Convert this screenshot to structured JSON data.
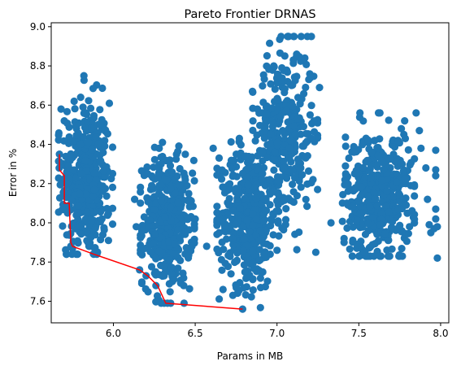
{
  "chart_data": {
    "type": "scatter",
    "title": "Pareto Frontier DRNAS",
    "xlabel": "Params in MB",
    "ylabel": "Error in %",
    "xlim": [
      5.62,
      8.05
    ],
    "ylim": [
      7.49,
      9.02
    ],
    "x_ticks": [
      6.0,
      6.5,
      7.0,
      7.5,
      8.0
    ],
    "x_tick_labels": [
      "6.0",
      "6.5",
      "7.0",
      "7.5",
      "8.0"
    ],
    "y_ticks": [
      7.6,
      7.8,
      8.0,
      8.2,
      8.4,
      8.6,
      8.8,
      9.0
    ],
    "y_tick_labels": [
      "7.6",
      "7.8",
      "8.0",
      "8.2",
      "8.4",
      "8.6",
      "8.8",
      "9.0"
    ],
    "grid": false,
    "legend": "none",
    "colors": {
      "points": "#1f77b4",
      "frontier": "#ff0000"
    },
    "series": [
      {
        "kind": "scatter",
        "color": "#1f77b4",
        "clusters": [
          {
            "x_center": 5.83,
            "x_spread": 0.075,
            "y_center": 8.22,
            "y_spread": 0.2,
            "y_min": 7.84,
            "y_max": 8.75,
            "count": 420
          },
          {
            "x_center": 6.33,
            "x_spread": 0.075,
            "y_center": 8.0,
            "y_spread": 0.16,
            "y_min": 7.59,
            "y_max": 8.41,
            "count": 420
          },
          {
            "x_center": 6.82,
            "x_spread": 0.085,
            "y_center": 8.04,
            "y_spread": 0.18,
            "y_min": 7.56,
            "y_max": 8.55,
            "count": 420
          },
          {
            "x_center": 7.05,
            "x_spread": 0.09,
            "y_center": 8.45,
            "y_spread": 0.22,
            "y_min": 7.85,
            "y_max": 8.95,
            "count": 330
          },
          {
            "x_center": 7.62,
            "x_spread": 0.1,
            "y_center": 8.14,
            "y_spread": 0.16,
            "y_min": 7.83,
            "y_max": 8.56,
            "count": 420
          }
        ],
        "points": [
          {
            "x": 5.67,
            "y": 8.35
          },
          {
            "x": 5.68,
            "y": 8.58
          },
          {
            "x": 5.7,
            "y": 8.52
          },
          {
            "x": 5.72,
            "y": 8.05
          },
          {
            "x": 5.74,
            "y": 7.88
          },
          {
            "x": 5.76,
            "y": 8.62
          },
          {
            "x": 5.8,
            "y": 8.64
          },
          {
            "x": 5.82,
            "y": 8.75
          },
          {
            "x": 5.88,
            "y": 7.84
          },
          {
            "x": 5.97,
            "y": 7.91
          },
          {
            "x": 6.13,
            "y": 8.12
          },
          {
            "x": 6.14,
            "y": 7.98
          },
          {
            "x": 6.16,
            "y": 7.76
          },
          {
            "x": 6.2,
            "y": 7.73
          },
          {
            "x": 6.21,
            "y": 8.25
          },
          {
            "x": 6.26,
            "y": 7.68
          },
          {
            "x": 6.28,
            "y": 8.38
          },
          {
            "x": 6.3,
            "y": 8.41
          },
          {
            "x": 6.31,
            "y": 7.59
          },
          {
            "x": 6.35,
            "y": 7.59
          },
          {
            "x": 6.43,
            "y": 7.68
          },
          {
            "x": 6.48,
            "y": 7.88
          },
          {
            "x": 6.5,
            "y": 8.02
          },
          {
            "x": 6.57,
            "y": 7.88
          },
          {
            "x": 6.61,
            "y": 8.38
          },
          {
            "x": 6.67,
            "y": 7.66
          },
          {
            "x": 6.73,
            "y": 7.63
          },
          {
            "x": 6.79,
            "y": 7.56
          },
          {
            "x": 6.9,
            "y": 7.67
          },
          {
            "x": 6.92,
            "y": 7.84
          },
          {
            "x": 6.85,
            "y": 8.67
          },
          {
            "x": 6.88,
            "y": 8.58
          },
          {
            "x": 6.98,
            "y": 8.8
          },
          {
            "x": 7.03,
            "y": 8.79
          },
          {
            "x": 7.1,
            "y": 8.83
          },
          {
            "x": 7.12,
            "y": 8.86
          },
          {
            "x": 7.17,
            "y": 8.84
          },
          {
            "x": 7.21,
            "y": 8.95
          },
          {
            "x": 7.26,
            "y": 8.69
          },
          {
            "x": 7.21,
            "y": 8.43
          },
          {
            "x": 7.22,
            "y": 8.22
          },
          {
            "x": 7.0,
            "y": 7.86
          },
          {
            "x": 7.33,
            "y": 8.0
          },
          {
            "x": 7.42,
            "y": 8.39
          },
          {
            "x": 7.42,
            "y": 8.25
          },
          {
            "x": 7.41,
            "y": 7.92
          },
          {
            "x": 7.41,
            "y": 7.9
          },
          {
            "x": 7.46,
            "y": 7.83
          },
          {
            "x": 7.47,
            "y": 8.36
          },
          {
            "x": 7.62,
            "y": 8.56
          },
          {
            "x": 7.74,
            "y": 8.42
          },
          {
            "x": 7.76,
            "y": 8.48
          },
          {
            "x": 7.78,
            "y": 8.52
          },
          {
            "x": 7.85,
            "y": 8.56
          },
          {
            "x": 7.87,
            "y": 8.47
          },
          {
            "x": 7.88,
            "y": 8.38
          },
          {
            "x": 7.91,
            "y": 8.28
          },
          {
            "x": 7.92,
            "y": 8.12
          },
          {
            "x": 7.93,
            "y": 7.99
          },
          {
            "x": 7.94,
            "y": 7.95
          },
          {
            "x": 7.97,
            "y": 8.37
          },
          {
            "x": 7.97,
            "y": 8.27
          },
          {
            "x": 7.97,
            "y": 8.24
          },
          {
            "x": 7.97,
            "y": 8.07
          },
          {
            "x": 7.97,
            "y": 8.02
          },
          {
            "x": 7.98,
            "y": 7.98
          },
          {
            "x": 7.98,
            "y": 7.82
          },
          {
            "x": 7.96,
            "y": 7.97
          },
          {
            "x": 7.81,
            "y": 7.98
          },
          {
            "x": 7.71,
            "y": 7.97
          },
          {
            "x": 7.68,
            "y": 7.91
          },
          {
            "x": 7.53,
            "y": 7.85
          }
        ]
      },
      {
        "kind": "line",
        "color": "#ff0000",
        "points": [
          {
            "x": 5.67,
            "y": 8.35
          },
          {
            "x": 5.67,
            "y": 8.27
          },
          {
            "x": 5.7,
            "y": 8.24
          },
          {
            "x": 5.7,
            "y": 8.1
          },
          {
            "x": 5.73,
            "y": 8.1
          },
          {
            "x": 5.74,
            "y": 7.9
          },
          {
            "x": 5.75,
            "y": 7.88
          },
          {
            "x": 5.88,
            "y": 7.84
          },
          {
            "x": 6.16,
            "y": 7.76
          },
          {
            "x": 6.21,
            "y": 7.73
          },
          {
            "x": 6.27,
            "y": 7.68
          },
          {
            "x": 6.32,
            "y": 7.59
          },
          {
            "x": 6.79,
            "y": 7.56
          }
        ]
      }
    ]
  }
}
